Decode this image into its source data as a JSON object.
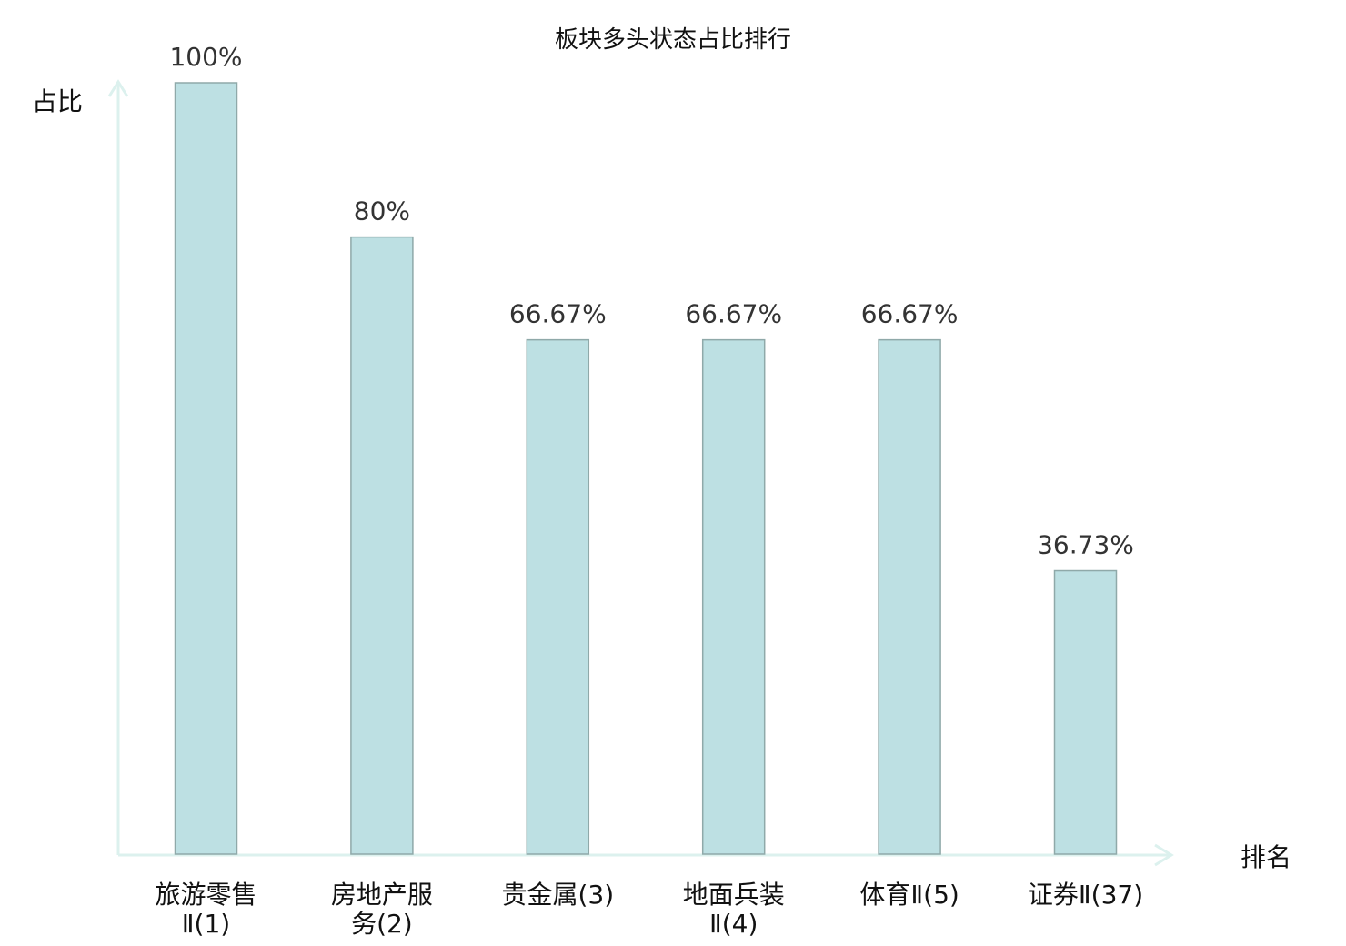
{
  "chart_data": {
    "type": "bar",
    "title": "板块多头状态占比排行",
    "ylabel": "占比",
    "xlabel": "排名",
    "categories": [
      "旅游零售Ⅱ(1)",
      "房地产服务(2)",
      "贵金属(3)",
      "地面兵装Ⅱ(4)",
      "体育Ⅱ(5)",
      "证券Ⅱ(37)"
    ],
    "values": [
      100,
      80,
      66.67,
      66.67,
      66.67,
      36.73
    ],
    "value_labels": [
      "100%",
      "80%",
      "66.67%",
      "66.67%",
      "66.67%",
      "36.73%"
    ],
    "highlight_index": 5,
    "ylim": [
      0,
      100
    ],
    "grid": false,
    "colors": {
      "bar_fill": "#bde0e3",
      "bar_stroke": "#8fa9a9",
      "axis": "#dcf1ee",
      "highlight_text": "#ff0000",
      "text": "#111111"
    }
  }
}
